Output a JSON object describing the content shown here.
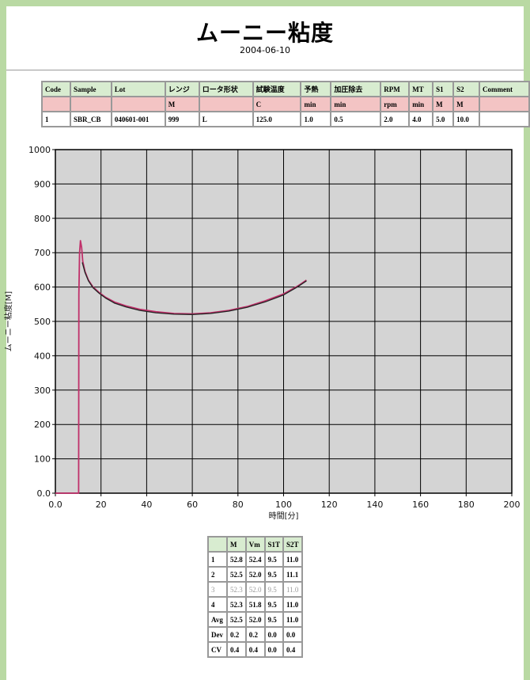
{
  "title": "ムーニー粘度",
  "date": "2004-06-10",
  "params_table": {
    "headers": [
      "Code",
      "Sample",
      "Lot",
      "レンジ",
      "ロータ形状",
      "試験温度",
      "予熱",
      "加圧除去",
      "RPM",
      "MT",
      "S1",
      "S2",
      "Comment"
    ],
    "units": [
      "",
      "",
      "",
      "M",
      "",
      "C",
      "min",
      "min",
      "rpm",
      "min",
      "M",
      "M",
      ""
    ],
    "values": [
      "1",
      "SBR_CB",
      "040601-001",
      "999",
      "L",
      "125.0",
      "1.0",
      "0.5",
      "2.0",
      "4.0",
      "5.0",
      "10.0",
      ""
    ]
  },
  "chart_data": {
    "type": "line",
    "xlabel": "時間[分]",
    "ylabel": "ムーニー粘度[M]",
    "xlim": [
      0,
      200
    ],
    "ylim": [
      0,
      1000
    ],
    "x_ticks": [
      "0.0",
      "20",
      "40",
      "60",
      "80",
      "100",
      "120",
      "140",
      "160",
      "180",
      "200"
    ],
    "y_ticks": [
      "0.0",
      "100",
      "200",
      "300",
      "400",
      "500",
      "600",
      "700",
      "800",
      "900",
      "1000"
    ],
    "grid": true,
    "background": "#d4d4d4",
    "series": [
      {
        "color": "#c0306a",
        "x": [
          0,
          10.2,
          10.3,
          10.6,
          11.0,
          11.5,
          12.0,
          13.0,
          14.5,
          16.5,
          19,
          22,
          26,
          31,
          37,
          44,
          52,
          60,
          68,
          76,
          84,
          92,
          100,
          106,
          110
        ],
        "y": [
          0,
          0,
          580,
          700,
          735,
          715,
          675,
          645,
          620,
          600,
          585,
          570,
          556,
          545,
          535,
          528,
          523,
          522,
          525,
          532,
          543,
          560,
          580,
          602,
          620
        ]
      },
      {
        "color": "#222222",
        "x": [
          11.8,
          13.0,
          14.5,
          16.5,
          19,
          22,
          26,
          31,
          37,
          44,
          52,
          60,
          68,
          76,
          84,
          92,
          100,
          106,
          110
        ],
        "y": [
          672,
          642,
          618,
          598,
          583,
          568,
          553,
          542,
          532,
          525,
          521,
          520,
          523,
          530,
          541,
          557,
          577,
          600,
          618
        ]
      }
    ]
  },
  "stats_table": {
    "headers": [
      "",
      "M",
      "Vm",
      "S1T",
      "S2T"
    ],
    "rows": [
      [
        "1",
        "52.8",
        "52.4",
        "9.5",
        "11.0"
      ],
      [
        "2",
        "52.5",
        "52.0",
        "9.5",
        "11.1"
      ],
      [
        "3",
        "52.3",
        "52.0",
        "9.5",
        "11.0"
      ],
      [
        "4",
        "52.3",
        "51.8",
        "9.5",
        "11.0"
      ],
      [
        "Avg",
        "52.5",
        "52.0",
        "9.5",
        "11.0"
      ],
      [
        "Dev",
        "0.2",
        "0.2",
        "0.0",
        "0.0"
      ],
      [
        "CV",
        "0.4",
        "0.4",
        "0.0",
        "0.4"
      ]
    ],
    "dim_rows": [
      2
    ]
  }
}
